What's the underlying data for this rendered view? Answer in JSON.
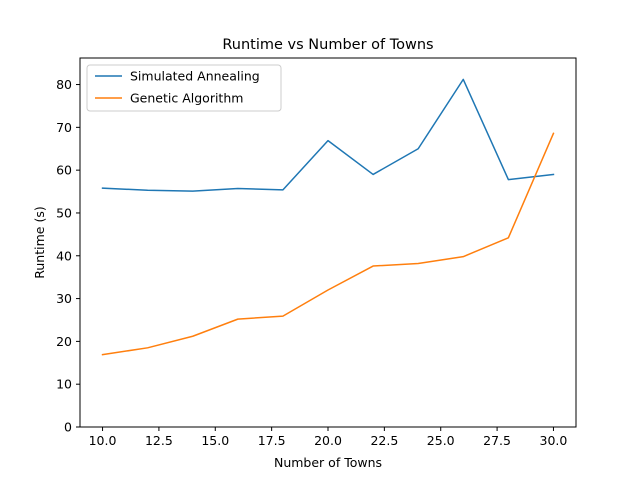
{
  "chart_data": {
    "type": "line",
    "title": "Runtime vs Number of Towns",
    "xlabel": "Number of Towns",
    "ylabel": "Runtime (s)",
    "x": [
      10,
      12,
      14,
      16,
      18,
      20,
      22,
      24,
      26,
      28,
      30
    ],
    "xlim": [
      9.0,
      31.0
    ],
    "ylim": [
      0,
      86.2
    ],
    "xticks": [
      10.0,
      12.5,
      15.0,
      17.5,
      20.0,
      22.5,
      25.0,
      27.5,
      30.0
    ],
    "xtick_labels": [
      "10.0",
      "12.5",
      "15.0",
      "17.5",
      "20.0",
      "22.5",
      "25.0",
      "27.5",
      "30.0"
    ],
    "yticks": [
      0,
      10,
      20,
      30,
      40,
      50,
      60,
      70,
      80
    ],
    "ytick_labels": [
      "0",
      "10",
      "20",
      "30",
      "40",
      "50",
      "60",
      "70",
      "80"
    ],
    "grid": false,
    "legend_position": "top-left",
    "series": [
      {
        "name": "Simulated Annealing",
        "color": "#1f77b4",
        "values": [
          55.8,
          55.3,
          55.1,
          55.7,
          55.4,
          66.9,
          59.0,
          65.0,
          81.2,
          57.8,
          59.0
        ]
      },
      {
        "name": "Genetic Algorithm",
        "color": "#ff7f0e",
        "values": [
          16.9,
          18.5,
          21.2,
          25.2,
          25.9,
          32.0,
          37.6,
          38.2,
          39.8,
          44.2,
          68.6
        ]
      }
    ]
  }
}
